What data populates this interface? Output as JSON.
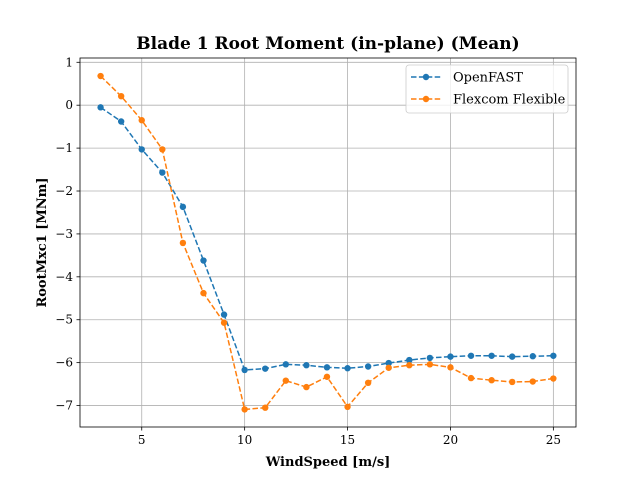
{
  "chart_data": {
    "type": "line",
    "title": "Blade 1 Root Moment (in-plane) (Mean)",
    "xlabel": "WindSpeed [m/s]",
    "ylabel": "RootMxc1 [MNm]",
    "xlim": [
      2.0,
      26.1
    ],
    "ylim": [
      -7.5,
      1.1
    ],
    "xticks": [
      5,
      10,
      15,
      20,
      25
    ],
    "yticks": [
      1,
      0,
      -1,
      -2,
      -3,
      -4,
      -5,
      -6,
      -7
    ],
    "xtick_labels": [
      "5",
      "10",
      "15",
      "20",
      "25"
    ],
    "ytick_labels": [
      "1",
      "0",
      "−1",
      "−2",
      "−3",
      "−4",
      "−5",
      "−6",
      "−7"
    ],
    "grid": true,
    "legend_position": "top-right",
    "x": [
      3,
      4,
      5,
      6,
      7,
      8,
      9,
      10,
      11,
      12,
      13,
      14,
      15,
      16,
      17,
      18,
      19,
      20,
      21,
      22,
      23,
      24,
      25
    ],
    "series": [
      {
        "name": "OpenFAST",
        "color": "#1f77b4",
        "values": [
          -0.05,
          -0.38,
          -1.03,
          -1.57,
          -2.37,
          -3.62,
          -4.88,
          -6.17,
          -6.14,
          -6.04,
          -6.06,
          -6.11,
          -6.13,
          -6.09,
          -6.01,
          -5.94,
          -5.89,
          -5.86,
          -5.84,
          -5.84,
          -5.86,
          -5.85,
          -5.84
        ]
      },
      {
        "name": "Flexcom Flexible",
        "color": "#ff7f0e",
        "values": [
          0.68,
          0.21,
          -0.35,
          -1.03,
          -3.21,
          -4.38,
          -5.07,
          -7.09,
          -7.05,
          -6.42,
          -6.57,
          -6.33,
          -7.03,
          -6.47,
          -6.12,
          -6.06,
          -6.04,
          -6.11,
          -6.36,
          -6.41,
          -6.45,
          -6.44,
          -6.37
        ]
      }
    ]
  }
}
